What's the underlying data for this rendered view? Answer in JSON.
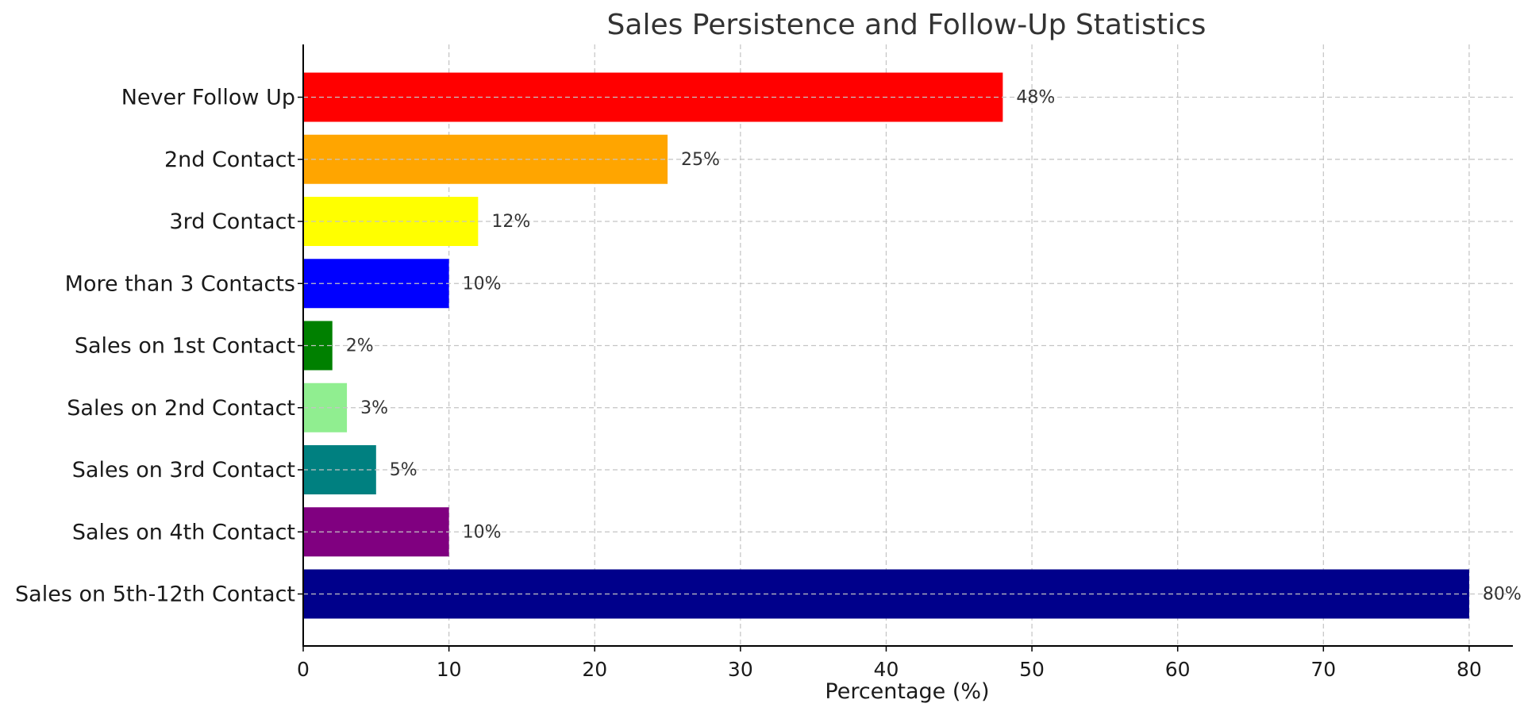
{
  "chart_data": {
    "type": "bar",
    "orientation": "horizontal",
    "title": "Sales Persistence and Follow-Up Statistics",
    "xlabel": "Percentage (%)",
    "ylabel": "",
    "xlim": [
      0,
      83
    ],
    "xticks": [
      0,
      10,
      20,
      30,
      40,
      50,
      60,
      70,
      80
    ],
    "grid": true,
    "categories": [
      "Never Follow Up",
      "2nd Contact",
      "3rd Contact",
      "More than 3 Contacts",
      "Sales on 1st Contact",
      "Sales on 2nd Contact",
      "Sales on 3rd Contact",
      "Sales on 4th Contact",
      "Sales on 5th-12th Contact"
    ],
    "values": [
      48,
      25,
      12,
      10,
      2,
      3,
      5,
      10,
      80
    ],
    "value_labels": [
      "48%",
      "25%",
      "12%",
      "10%",
      "2%",
      "3%",
      "5%",
      "10%",
      "80%"
    ],
    "colors": [
      "#ff0000",
      "#ffa500",
      "#ffff00",
      "#0000ff",
      "#008000",
      "#90ee90",
      "#008080",
      "#800080",
      "#00008b"
    ]
  }
}
